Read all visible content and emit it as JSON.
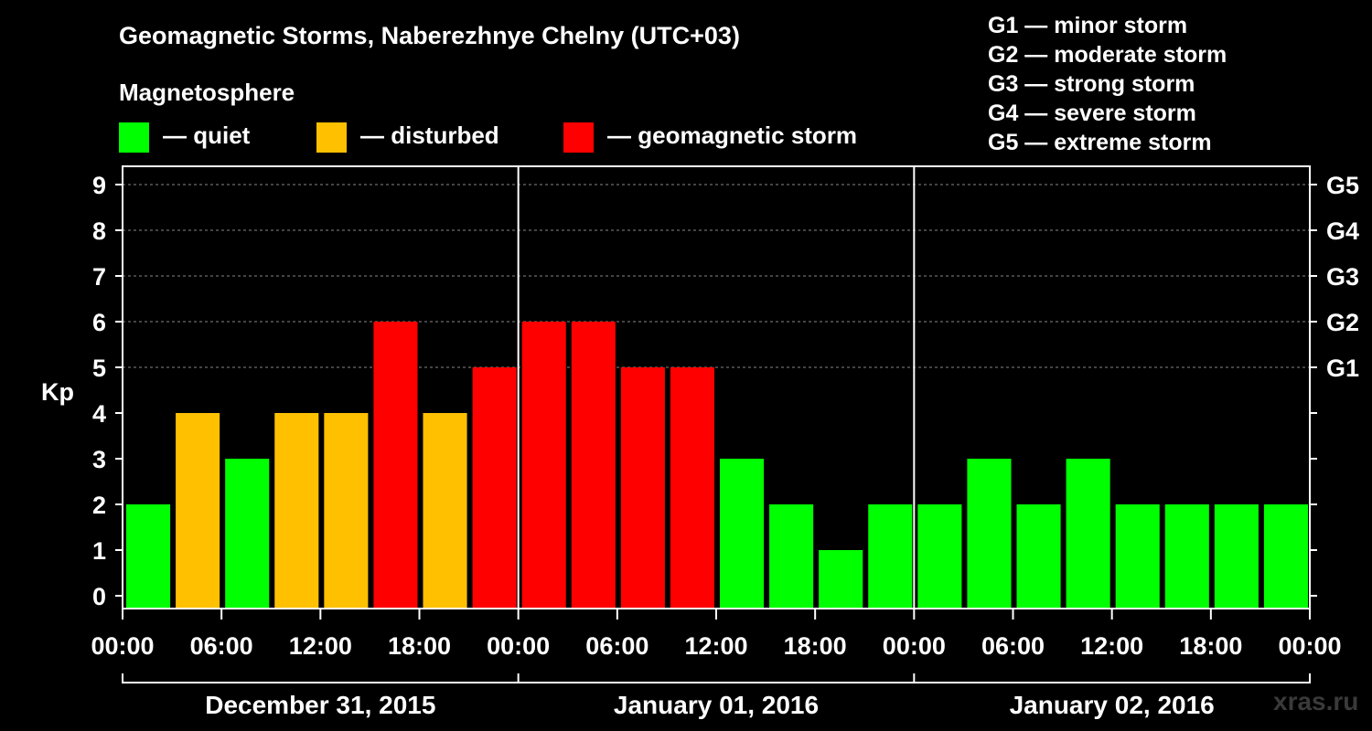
{
  "header": {
    "title": "Geomagnetic Storms, Naberezhnye Chelny (UTC+03)",
    "magnetosphere_label": "Magnetosphere",
    "legend": [
      {
        "label": "— quiet",
        "color": "#00ff00"
      },
      {
        "label": "— disturbed",
        "color": "#ffc000"
      },
      {
        "label": "— geomagnetic storm",
        "color": "#ff0000"
      }
    ],
    "storm_scale": [
      "G1 — minor storm",
      "G2 — moderate storm",
      "G3 — strong storm",
      "G4 — severe storm",
      "G5 — extreme storm"
    ]
  },
  "watermark": "xras.ru",
  "chart_data": {
    "type": "bar",
    "title": "Geomagnetic Storms, Naberezhnye Chelny (UTC+03)",
    "ylabel": "Kp",
    "ylim": [
      0,
      9
    ],
    "yticks": [
      "0",
      "1",
      "2",
      "3",
      "4",
      "5",
      "6",
      "7",
      "8",
      "9"
    ],
    "right_axis_labels": [
      {
        "kp": 5,
        "label": "G1"
      },
      {
        "kp": 6,
        "label": "G2"
      },
      {
        "kp": 7,
        "label": "G3"
      },
      {
        "kp": 8,
        "label": "G4"
      },
      {
        "kp": 9,
        "label": "G5"
      }
    ],
    "xticks": [
      "00:00",
      "06:00",
      "12:00",
      "18:00",
      "00:00",
      "06:00",
      "12:00",
      "18:00",
      "00:00",
      "06:00",
      "12:00",
      "18:00",
      "00:00"
    ],
    "days": [
      "December 31, 2015",
      "January 01, 2016",
      "January 02, 2016"
    ],
    "interval_hours": 3,
    "values": [
      2,
      4,
      3,
      4,
      4,
      6,
      4,
      5,
      6,
      6,
      5,
      5,
      3,
      2,
      1,
      2,
      2,
      3,
      2,
      3,
      2,
      2,
      2,
      2
    ],
    "colors": {
      "quiet": "#00ff00",
      "disturbed": "#ffc000",
      "storm": "#ff0000"
    },
    "grid": true
  }
}
